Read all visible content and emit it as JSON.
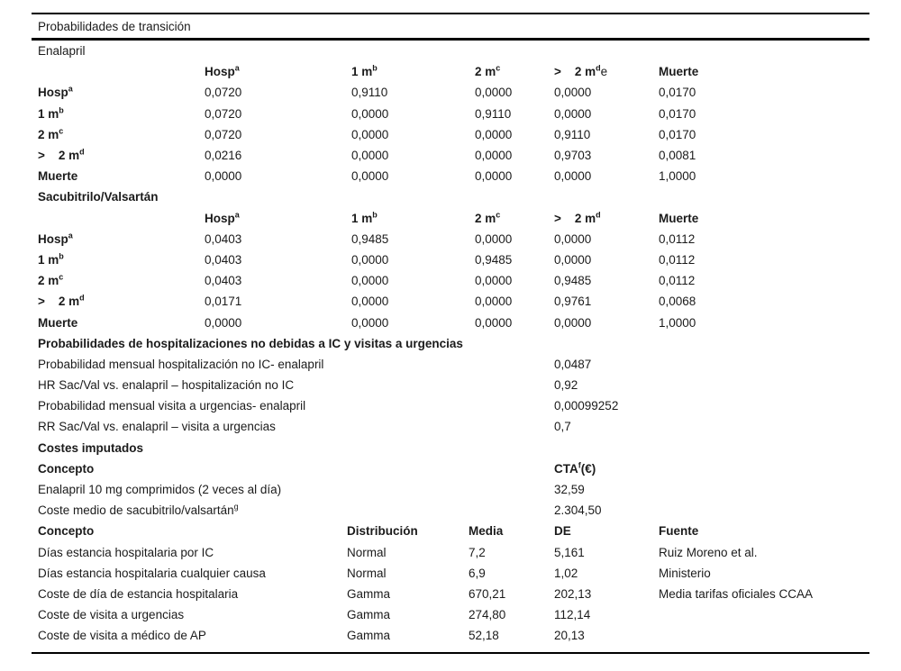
{
  "table": {
    "caption": "Probabilidades de transición",
    "enalapril": {
      "title": "Enalapril",
      "headers": [
        {
          "t": "Hosp",
          "s": "a",
          "e": ""
        },
        {
          "t": "1 m",
          "s": "b",
          "e": ""
        },
        {
          "t": "2 m",
          "s": "c",
          "e": ""
        },
        {
          "t": ">    2 m",
          "s": "d",
          "e": "e"
        },
        {
          "t": "Muerte",
          "s": "",
          "e": ""
        }
      ],
      "rows": [
        {
          "l": "Hosp",
          "s": "a",
          "v": [
            "0,0720",
            "0,9110",
            "0,0000",
            "0,0000",
            "0,0170"
          ]
        },
        {
          "l": "1 m",
          "s": "b",
          "v": [
            "0,0720",
            "0,0000",
            "0,9110",
            "0,0000",
            "0,0170"
          ]
        },
        {
          "l": "2 m",
          "s": "c",
          "v": [
            "0,0720",
            "0,0000",
            "0,0000",
            "0,9110",
            "0,0170"
          ]
        },
        {
          "l": ">    2 m",
          "s": "d",
          "v": [
            "0,0216",
            "0,0000",
            "0,0000",
            "0,9703",
            "0,0081"
          ]
        },
        {
          "l": "Muerte",
          "s": "",
          "v": [
            "0,0000",
            "0,0000",
            "0,0000",
            "0,0000",
            "1,0000"
          ]
        }
      ]
    },
    "sacubitrilo": {
      "title": "Sacubitrilo/Valsartán",
      "headers": [
        {
          "t": "Hosp",
          "s": "a",
          "e": ""
        },
        {
          "t": "1 m",
          "s": "b",
          "e": ""
        },
        {
          "t": "2 m",
          "s": "c",
          "e": ""
        },
        {
          "t": ">    2 m",
          "s": "d",
          "e": ""
        },
        {
          "t": "Muerte",
          "s": "",
          "e": ""
        }
      ],
      "rows": [
        {
          "l": "Hosp",
          "s": "a",
          "v": [
            "0,0403",
            "0,9485",
            "0,0000",
            "0,0000",
            "0,0112"
          ]
        },
        {
          "l": "1 m",
          "s": "b",
          "v": [
            "0,0403",
            "0,0000",
            "0,9485",
            "0,0000",
            "0,0112"
          ]
        },
        {
          "l": "2 m",
          "s": "c",
          "v": [
            "0,0403",
            "0,0000",
            "0,0000",
            "0,9485",
            "0,0112"
          ]
        },
        {
          "l": ">    2 m",
          "s": "d",
          "v": [
            "0,0171",
            "0,0000",
            "0,0000",
            "0,9761",
            "0,0068"
          ]
        },
        {
          "l": "Muerte",
          "s": "",
          "v": [
            "0,0000",
            "0,0000",
            "0,0000",
            "0,0000",
            "1,0000"
          ]
        }
      ]
    },
    "probabilities": {
      "title": "Probabilidades de hospitalizaciones no debidas a IC y visitas a urgencias",
      "rows": [
        {
          "l": "Probabilidad mensual hospitalización no IC- enalapril",
          "v": "0,0487"
        },
        {
          "l": "HR Sac/Val vs. enalapril – hospitalización no IC",
          "v": "0,92"
        },
        {
          "l": "Probabilidad mensual visita a urgencias- enalapril",
          "v": "0,00099252"
        },
        {
          "l": "RR Sac/Val vs. enalapril – visita a urgencias",
          "v": "0,7"
        }
      ]
    },
    "costs": {
      "title": "Costes imputados",
      "header": {
        "l": "Concepto",
        "vt": "CTA",
        "vs": "f",
        "ve": "(€)"
      },
      "rows": [
        {
          "l": "Enalapril 10 mg comprimidos (2 veces al día)",
          "s": "",
          "v": "32,59"
        },
        {
          "l": "Coste medio de sacubitrilo/valsartán",
          "s": "g",
          "v": "2.304,50"
        }
      ]
    },
    "distributions": {
      "headers": {
        "concepto": "Concepto",
        "distribucion": "Distribución",
        "media": "Media",
        "de": "DE",
        "fuente": "Fuente"
      },
      "rows": [
        {
          "c": "Días estancia hospitalaria por IC",
          "d": "Normal",
          "m": "7,2",
          "de": "5,161",
          "f": "Ruiz Moreno et al."
        },
        {
          "c": "Días estancia hospitalaria cualquier causa",
          "d": "Normal",
          "m": "6,9",
          "de": "1,02",
          "f": "Ministerio"
        },
        {
          "c": "Coste de día de estancia hospitalaria",
          "d": "Gamma",
          "m": "670,21",
          "de": "202,13",
          "f": "Media tarifas oficiales CCAA"
        },
        {
          "c": "Coste de visita a urgencias",
          "d": "Gamma",
          "m": "274,80",
          "de": "112,14",
          "f": ""
        },
        {
          "c": "Coste de visita a médico de AP",
          "d": "Gamma",
          "m": "52,18",
          "de": "20,13",
          "f": ""
        }
      ]
    }
  }
}
